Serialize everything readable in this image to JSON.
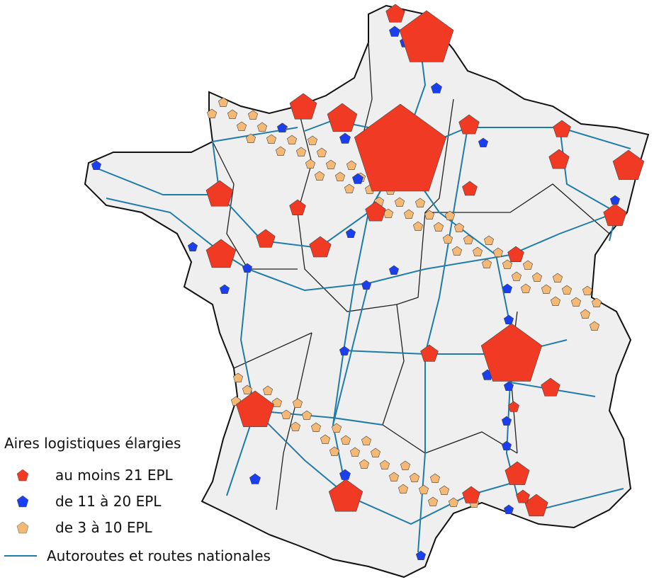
{
  "legend": {
    "title": "Aires logistiques élargies",
    "categories": [
      {
        "label": "au moins 21 EPL",
        "color": "#f03a24"
      },
      {
        "label": "de 11 à 20 EPL",
        "color": "#1a3ff0"
      },
      {
        "label": "de 3 à 10 EPL",
        "color": "#f5b975"
      }
    ],
    "roads_label": "Autoroutes et routes nationales",
    "roads_color": "#1f7ca8"
  },
  "map": {
    "land_color": "#efefef",
    "border_color": "#111111"
  }
}
